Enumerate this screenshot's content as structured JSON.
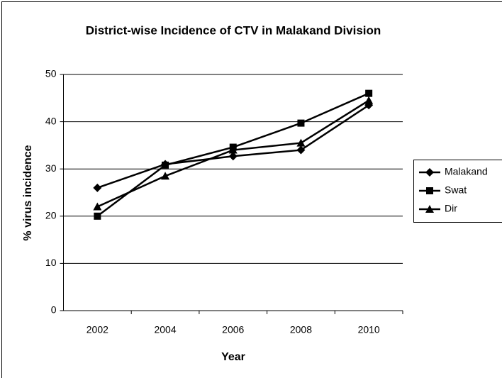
{
  "chart_data": {
    "type": "line",
    "title": "District-wise Incidence of CTV in Malakand Division",
    "xlabel": "Year",
    "ylabel": "% virus incidence",
    "categories": [
      "2002",
      "2004",
      "2006",
      "2008",
      "2010"
    ],
    "series": [
      {
        "name": "Malakand",
        "color": "#000000",
        "marker": "diamond",
        "values": [
          26,
          31,
          32.7,
          34,
          43.5
        ]
      },
      {
        "name": "Swat",
        "color": "#000000",
        "marker": "square",
        "values": [
          20,
          30.8,
          34.6,
          39.7,
          46
        ]
      },
      {
        "name": "Dir",
        "color": "#000000",
        "marker": "triangle",
        "values": [
          22,
          28.5,
          34,
          35.5,
          44.5
        ]
      }
    ],
    "ylim": [
      0,
      50
    ],
    "yticks": [
      0,
      10,
      20,
      30,
      40,
      50
    ],
    "grid": true,
    "legend": "right"
  }
}
